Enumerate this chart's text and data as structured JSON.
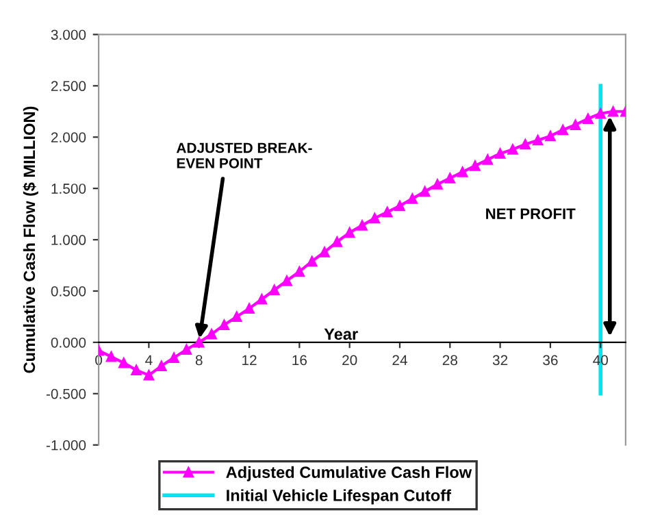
{
  "chart_data": {
    "type": "line",
    "ylabel": "Cumulative Cash Flow ($ MILLION)",
    "xlabel": "Year",
    "xlim": [
      0,
      42
    ],
    "xticks": [
      0,
      4,
      8,
      12,
      16,
      20,
      24,
      28,
      32,
      36,
      40
    ],
    "ylim": [
      -1,
      3
    ],
    "yticks": [
      {
        "value": -1,
        "label": "-1.000"
      },
      {
        "value": -0.5,
        "label": "-0.500"
      },
      {
        "value": 0,
        "label": "0.000"
      },
      {
        "value": 0.5,
        "label": "0.500"
      },
      {
        "value": 1,
        "label": "1.000"
      },
      {
        "value": 1.5,
        "label": "1.500"
      },
      {
        "value": 2,
        "label": "2.000"
      },
      {
        "value": 2.5,
        "label": "2.500"
      },
      {
        "value": 3,
        "label": "3.000"
      }
    ],
    "grid": false,
    "legend": "bottom",
    "series": [
      {
        "name": "Adjusted Cumulative Cash Flow",
        "color": "#ff00ff",
        "marker": "triangle",
        "x": [
          0,
          1,
          2,
          3,
          4,
          5,
          6,
          7,
          8,
          9,
          10,
          11,
          12,
          13,
          14,
          15,
          16,
          17,
          18,
          19,
          20,
          21,
          22,
          23,
          24,
          25,
          26,
          27,
          28,
          29,
          30,
          31,
          32,
          33,
          34,
          35,
          36,
          37,
          38,
          39,
          40,
          41,
          42
        ],
        "values": [
          -0.08,
          -0.14,
          -0.2,
          -0.27,
          -0.32,
          -0.23,
          -0.15,
          -0.07,
          0.0,
          0.08,
          0.17,
          0.25,
          0.33,
          0.42,
          0.51,
          0.6,
          0.69,
          0.79,
          0.88,
          0.98,
          1.07,
          1.14,
          1.21,
          1.27,
          1.33,
          1.4,
          1.47,
          1.54,
          1.6,
          1.66,
          1.72,
          1.78,
          1.84,
          1.88,
          1.93,
          1.97,
          2.01,
          2.07,
          2.12,
          2.18,
          2.23,
          2.25,
          2.25
        ]
      },
      {
        "name": "Initial Vehicle Lifespan Cutoff",
        "color": "#00e5ee",
        "marker": "none",
        "x": [
          40,
          40
        ],
        "values": [
          -0.5,
          2.5
        ]
      }
    ],
    "annotations": [
      {
        "text": "ADJUSTED BREAK-\nEVEN POINT",
        "x": 8,
        "y": 0
      },
      "NET PROFIT"
    ]
  }
}
